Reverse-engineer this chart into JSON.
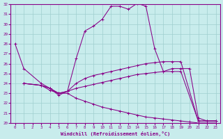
{
  "xlabel": "Windchill (Refroidissement éolien,°C)",
  "xlim": [
    -0.5,
    23.5
  ],
  "ylim": [
    20,
    32
  ],
  "xticks": [
    0,
    1,
    2,
    3,
    4,
    5,
    6,
    7,
    8,
    9,
    10,
    11,
    12,
    13,
    14,
    15,
    16,
    17,
    18,
    19,
    20,
    21,
    22,
    23
  ],
  "yticks": [
    20,
    21,
    22,
    23,
    24,
    25,
    26,
    27,
    28,
    29,
    30,
    31,
    32
  ],
  "background_color": "#c8ecec",
  "line_color": "#880088",
  "grid_color": "#9fcfcf",
  "line1_x": [
    0,
    1,
    3,
    4,
    5,
    6,
    7,
    8,
    9,
    10,
    11,
    12,
    13,
    14,
    15,
    16,
    17,
    18,
    19,
    20,
    21,
    22,
    23
  ],
  "line1_y": [
    28.0,
    25.5,
    24.0,
    23.5,
    22.8,
    23.2,
    26.5,
    29.3,
    29.8,
    30.5,
    31.8,
    31.8,
    31.5,
    32.1,
    31.8,
    27.5,
    25.2,
    25.5,
    25.5,
    25.5,
    20.5,
    20.2,
    20.2
  ],
  "line2_x": [
    1,
    3,
    4,
    5,
    6,
    7,
    8,
    9,
    10,
    11,
    12,
    13,
    14,
    15,
    16,
    17,
    18,
    19,
    21,
    22,
    23
  ],
  "line2_y": [
    24.0,
    23.8,
    23.5,
    23.0,
    23.2,
    24.0,
    24.5,
    24.8,
    25.0,
    25.2,
    25.4,
    25.6,
    25.8,
    26.0,
    26.1,
    26.2,
    26.2,
    26.2,
    20.2,
    20.2,
    20.2
  ],
  "line3_x": [
    1,
    3,
    4,
    5,
    6,
    7,
    8,
    9,
    10,
    11,
    12,
    13,
    14,
    15,
    16,
    17,
    18,
    19,
    20,
    21,
    22,
    23
  ],
  "line3_y": [
    24.0,
    23.8,
    23.3,
    23.0,
    23.0,
    22.5,
    22.2,
    21.9,
    21.6,
    21.4,
    21.2,
    21.0,
    20.8,
    20.6,
    20.5,
    20.4,
    20.3,
    20.2,
    20.1,
    20.0,
    20.0,
    20.0
  ],
  "line4_x": [
    1,
    3,
    4,
    5,
    6,
    7,
    8,
    9,
    10,
    11,
    12,
    13,
    14,
    15,
    16,
    17,
    18,
    19,
    21,
    22,
    23
  ],
  "line4_y": [
    24.0,
    23.8,
    23.5,
    23.0,
    23.2,
    23.5,
    23.7,
    23.9,
    24.1,
    24.3,
    24.5,
    24.7,
    24.9,
    25.0,
    25.1,
    25.2,
    25.2,
    25.2,
    20.2,
    20.2,
    20.2
  ]
}
